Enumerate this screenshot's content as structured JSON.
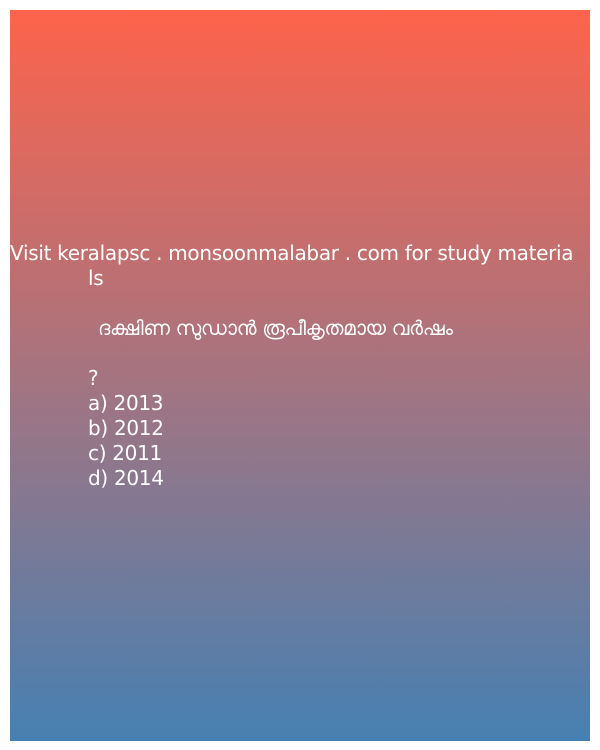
{
  "promo": {
    "line1": "Visit keralapsc . monsoonmalabar . com for study materia",
    "line2": "ls"
  },
  "question": {
    "text": "ദക്ഷിണ സുഡാൻ രൂപീകൃതമായ വർഷം",
    "mark": "?"
  },
  "options": [
    "a) 2013",
    "b) 2012",
    "c) 2011",
    "d) 2014"
  ],
  "colors": {
    "gradient_top": "#fe634b",
    "gradient_middle": "#a57480",
    "gradient_bottom": "#4680b2",
    "text": "#ffffff"
  }
}
